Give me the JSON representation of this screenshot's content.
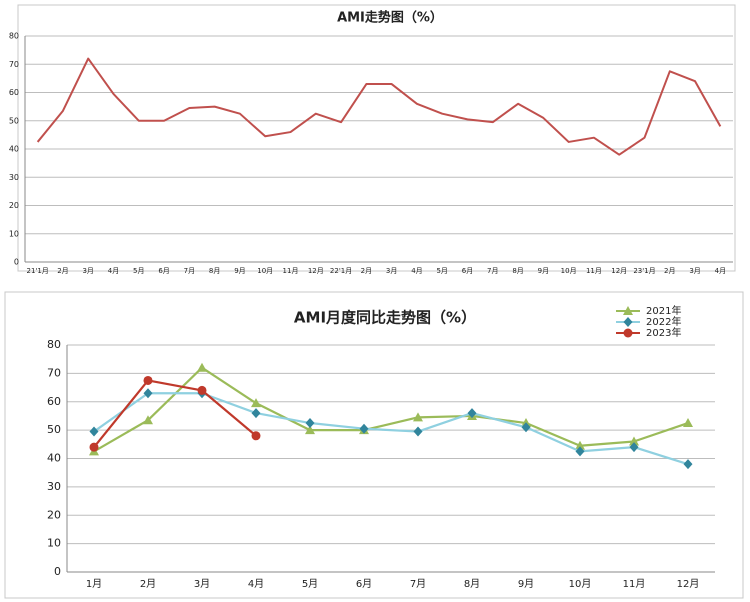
{
  "chart_data": [
    {
      "type": "line",
      "title": "AMI走势图（%）",
      "categories": [
        "21'1月",
        "2月",
        "3月",
        "4月",
        "5月",
        "6月",
        "7月",
        "8月",
        "9月",
        "10月",
        "11月",
        "12月",
        "22'1月",
        "2月",
        "3月",
        "4月",
        "5月",
        "6月",
        "7月",
        "8月",
        "9月",
        "10月",
        "11月",
        "12月",
        "23'1月",
        "2月",
        "3月",
        "4月"
      ],
      "values": [
        42.5,
        53.5,
        72,
        59.5,
        50,
        50,
        54.5,
        55,
        52.5,
        44.5,
        46,
        52.5,
        49.5,
        63,
        63,
        56,
        52.5,
        50.5,
        49.5,
        56,
        51,
        42.5,
        44,
        38,
        44,
        67.5,
        64,
        48
      ],
      "color": "#c0504d",
      "ylim": [
        0,
        80
      ],
      "yticks": [
        0,
        10,
        20,
        30,
        40,
        50,
        60,
        70,
        80
      ],
      "grid": true
    },
    {
      "type": "line",
      "title": "AMI月度同比走势图（%）",
      "categories": [
        "1月",
        "2月",
        "3月",
        "4月",
        "5月",
        "6月",
        "7月",
        "8月",
        "9月",
        "10月",
        "11月",
        "12月"
      ],
      "series": [
        {
          "name": "2021年",
          "color": "#9bbb59",
          "marker": "triangle",
          "values": [
            42.5,
            53.5,
            72,
            59.5,
            50,
            50,
            54.5,
            55,
            52.5,
            44.5,
            46,
            52.5
          ]
        },
        {
          "name": "2022年",
          "color": "#8fd0e0",
          "markerColor": "#31859c",
          "marker": "diamond",
          "values": [
            49.5,
            63,
            63,
            56,
            52.5,
            50.5,
            49.5,
            56,
            51,
            42.5,
            44,
            38
          ]
        },
        {
          "name": "2023年",
          "color": "#c0392b",
          "marker": "circle",
          "values": [
            44,
            67.5,
            64,
            48,
            null,
            null,
            null,
            null,
            null,
            null,
            null,
            null
          ]
        }
      ],
      "ylim": [
        0,
        80
      ],
      "yticks": [
        0,
        10,
        20,
        30,
        40,
        50,
        60,
        70,
        80
      ],
      "grid": true,
      "legend": "top-right"
    }
  ]
}
